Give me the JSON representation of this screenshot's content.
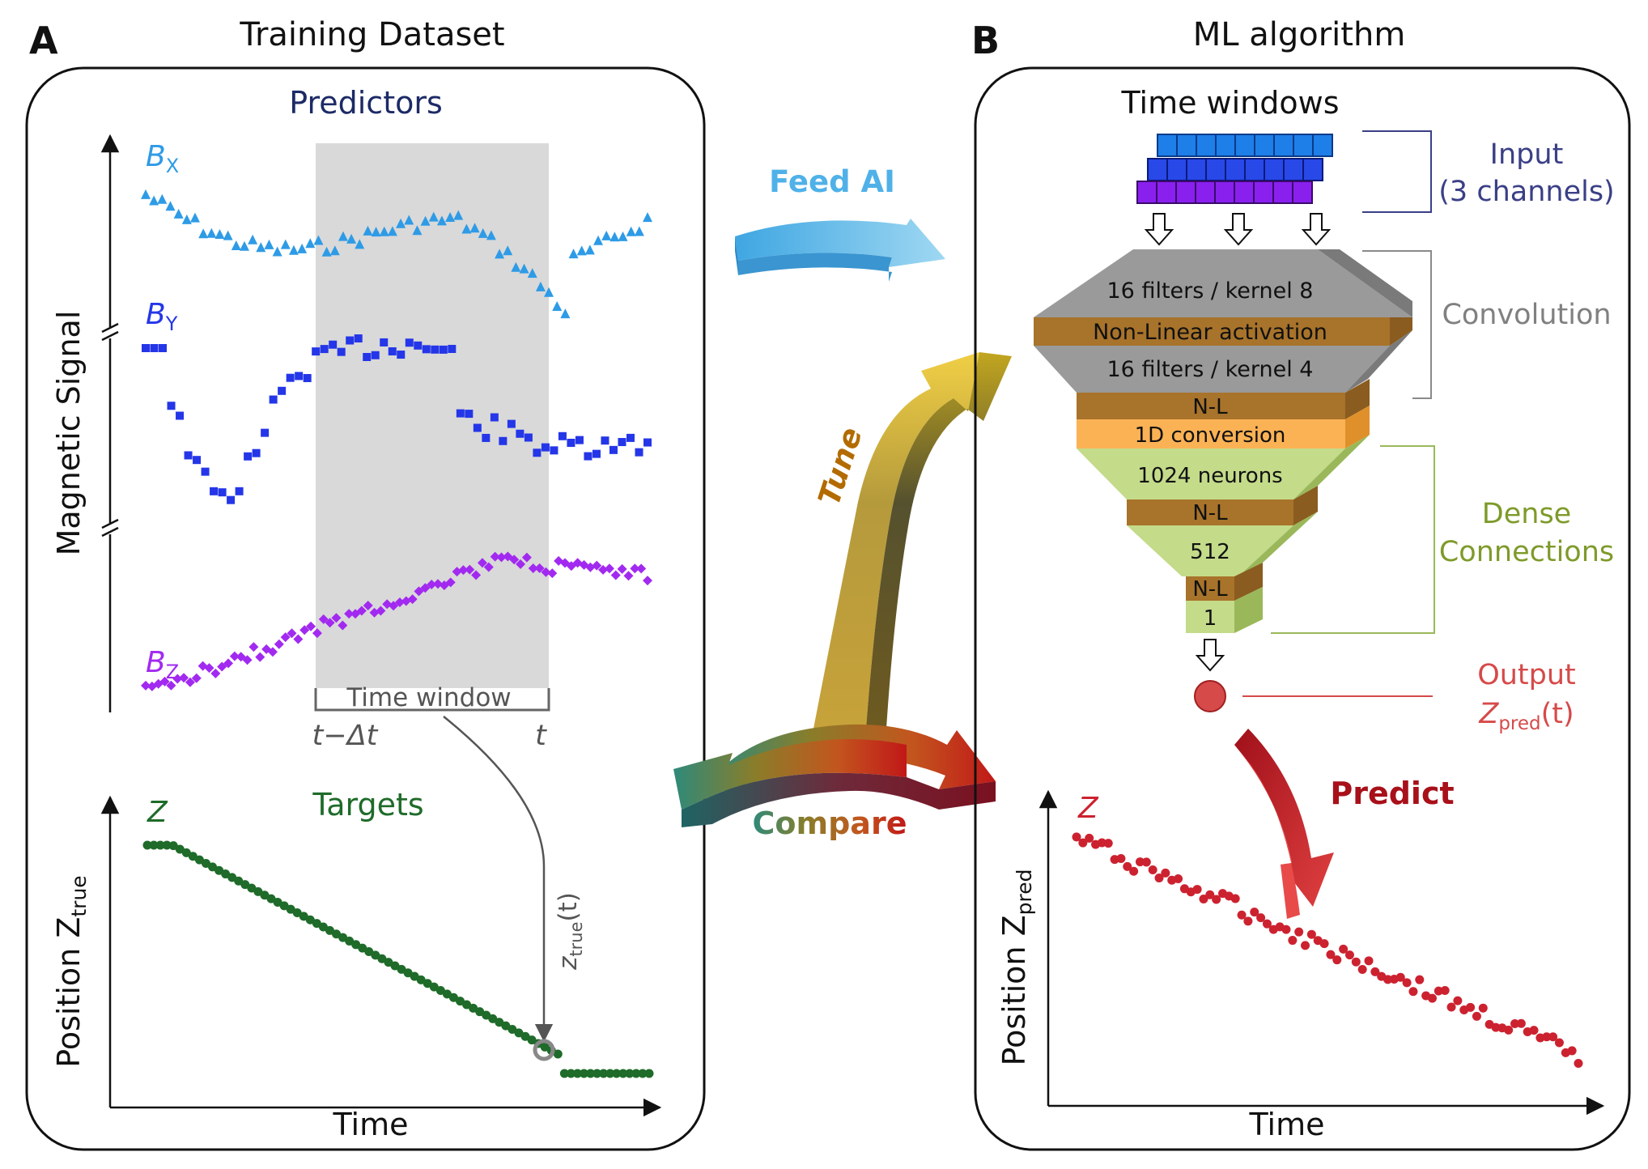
{
  "panelA": {
    "letter": "A",
    "title": "Training Dataset",
    "predictors_title": "Predictors",
    "ylabel": "Magnetic Signal",
    "series_bx": "B",
    "series_bx_sub": "X",
    "series_by": "B",
    "series_by_sub": "Y",
    "series_bz": "B",
    "series_bz_sub": "Z",
    "time_window_label": "Time window",
    "t_minus_dt": "t−Δt",
    "t_label": "t",
    "targets_title": "Targets",
    "z_label": "Z",
    "target_ylabel": "Position Z",
    "target_ylabel_sub": "true",
    "ztrue_label": "z",
    "ztrue_sub": "true",
    "ztrue_arg": "(t)",
    "xlabel": "Time"
  },
  "panelB": {
    "letter": "B",
    "title": "ML algorithm",
    "time_windows": "Time windows",
    "input_label_1": "Input",
    "input_label_2": "(3 channels)",
    "convolution_label": "Convolution",
    "dense_label_1": "Dense",
    "dense_label_2": "Connections",
    "output_label": "Output",
    "zpred_label": "Z",
    "zpred_sub": "pred",
    "zpred_arg": "(t)",
    "layers": {
      "conv1": "16 filters / kernel 8",
      "nl1": "Non-Linear activation",
      "conv2": "16 filters / kernel 4",
      "nl2": "N-L",
      "flatten": "1D conversion",
      "dense1": "1024 neurons",
      "nl3": "N-L",
      "dense2": "512",
      "nl4": "N-L",
      "out": "1"
    },
    "z_label": "Z",
    "pred_ylabel": "Position Z",
    "pred_ylabel_sub": "pred",
    "xlabel": "Time"
  },
  "arrows": {
    "feed": "Feed AI",
    "tune": "Tune",
    "compare": "Compare",
    "predict": "Predict"
  },
  "colors": {
    "bx": "#2e9be6",
    "by": "#2436e8",
    "bz": "#a22af0",
    "target": "#1f6b2a",
    "pred": "#cc2230",
    "predictors_title": "#1c2a66",
    "input_label": "#3a3f86",
    "conv_label": "#808080",
    "dense_label": "#7e9a2a",
    "output_label": "#d64a4a",
    "feed": "#4fb1e8",
    "tune": "#b36b00",
    "compare": "#3e6e52",
    "predict": "#a8101a"
  }
}
